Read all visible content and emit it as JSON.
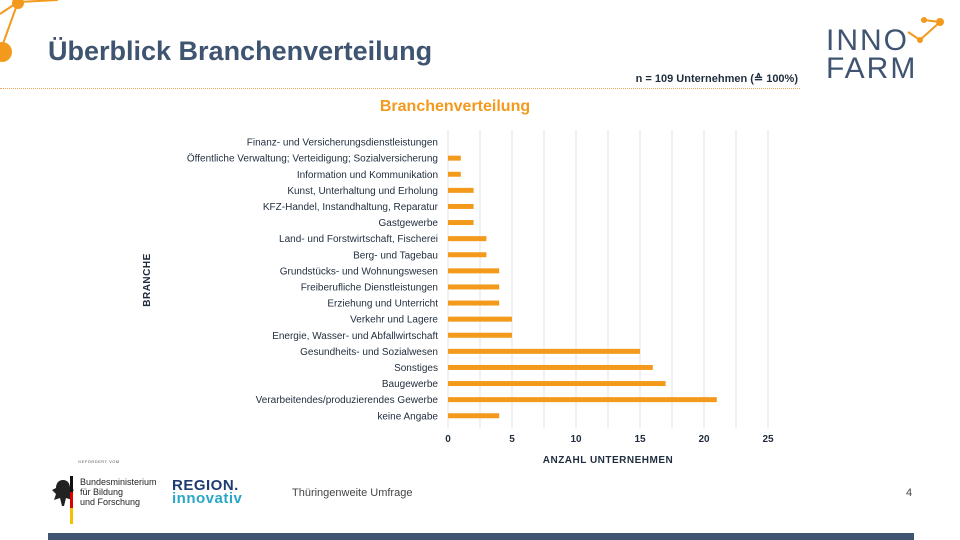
{
  "header": {
    "title": "Überblick Branchenverteilung",
    "sample_note": "n = 109 Unternehmen (≙ 100%)"
  },
  "logo": {
    "line1": "INNO",
    "line2": "FARM",
    "accent_color": "#f39a1d",
    "text_color": "#3f5470"
  },
  "chart_data": {
    "type": "bar",
    "orientation": "horizontal",
    "title": "Branchenverteilung",
    "xlabel": "ANZAHL UNTERNEHMEN",
    "ylabel": "BRANCHE",
    "xlim": [
      0,
      25
    ],
    "xticks": [
      0,
      5,
      10,
      15,
      20,
      25
    ],
    "grid": true,
    "bar_color": "#f39a1d",
    "categories": [
      "Finanz- und Versicherungsdienstleistungen",
      "Öffentliche Verwaltung; Verteidigung; Sozialversicherung",
      "Information und Kommunikation",
      "Kunst, Unterhaltung und Erholung",
      "KFZ-Handel, Instandhaltung, Reparatur",
      "Gastgewerbe",
      "Land- und Forstwirtschaft, Fischerei",
      "Berg- und Tagebau",
      "Grundstücks- und Wohnungswesen",
      "Freiberufliche Dienstleistungen",
      "Erziehung und Unterricht",
      "Verkehr und Lagere",
      "Energie, Wasser- und Abfallwirtschaft",
      "Gesundheits- und Sozialwesen",
      "Sonstiges",
      "Baugewerbe",
      "Verarbeitendes/produzierendes Gewerbe",
      "keine Angabe"
    ],
    "values": [
      0,
      1,
      1,
      2,
      2,
      2,
      3,
      3,
      4,
      4,
      4,
      5,
      5,
      15,
      16,
      17,
      21,
      4
    ]
  },
  "footer": {
    "funded_by": "GEFÖRDERT VOM",
    "ministry_lines": [
      "Bundesministerium",
      "für Bildung",
      "und Forschung"
    ],
    "program_line1": "REGION.",
    "program_line2": "innovativ",
    "survey_label": "Thüringenweite Umfrage",
    "page_number": "4"
  }
}
